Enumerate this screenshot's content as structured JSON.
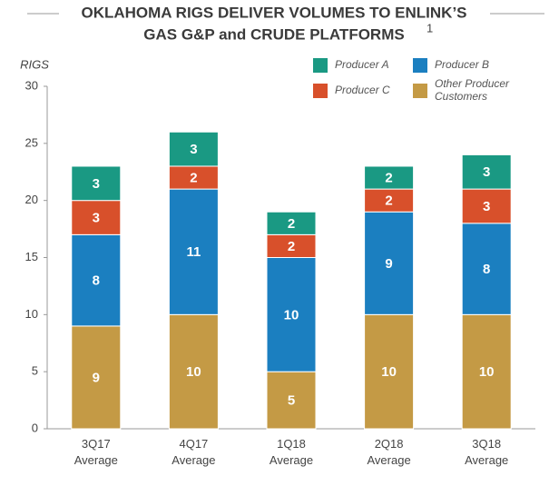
{
  "chart_data": {
    "type": "stacked_bar",
    "title": [
      "OKLAHOMA RIGS DELIVER VOLUMES TO ENLINK’S",
      "GAS G&P and CRUDE PLATFORMS"
    ],
    "title_note": "1",
    "y_label": "RIGS",
    "categories": [
      "3Q17 Average",
      "4Q17 Average",
      "1Q18 Average",
      "2Q18 Average",
      "3Q18 Average"
    ],
    "series": [
      {
        "name": "Other Producer Customers",
        "color": "#c49a45",
        "values": [
          9,
          10,
          5,
          10,
          10
        ]
      },
      {
        "name": "Producer B",
        "color": "#1b7fc0",
        "values": [
          8,
          11,
          10,
          9,
          8
        ]
      },
      {
        "name": "Producer C",
        "color": "#d8502b",
        "values": [
          3,
          2,
          2,
          2,
          3
        ]
      },
      {
        "name": "Producer A",
        "color": "#1a9983",
        "values": [
          3,
          3,
          2,
          2,
          3
        ]
      }
    ],
    "ylim": [
      0,
      30
    ],
    "yticks": [
      0,
      5,
      10,
      15,
      20,
      25,
      30
    ],
    "grid": false
  }
}
